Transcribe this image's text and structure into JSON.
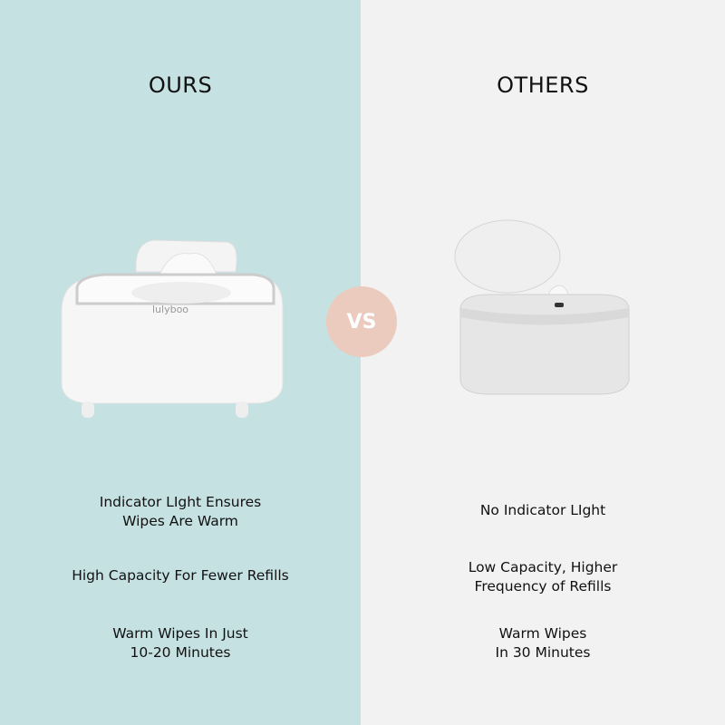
{
  "ours": {
    "title": "OURS",
    "brand_logo": "lulyboo",
    "features": [
      "Indicator LIght Ensures\nWipes Are Warm",
      "High Capacity For Fewer Refills",
      "Warm Wipes In Just\n10-20 Minutes"
    ]
  },
  "others": {
    "title": "OTHERS",
    "features": [
      "No Indicator LIght",
      "Low Capacity, Higher\nFrequency of Refills",
      "Warm Wipes\nIn 30 Minutes"
    ]
  },
  "vs_label": "VS",
  "colors": {
    "ours_bg": "#c5e1e2",
    "others_bg": "#f2f2f2",
    "vs_badge": "#eccbbf"
  }
}
